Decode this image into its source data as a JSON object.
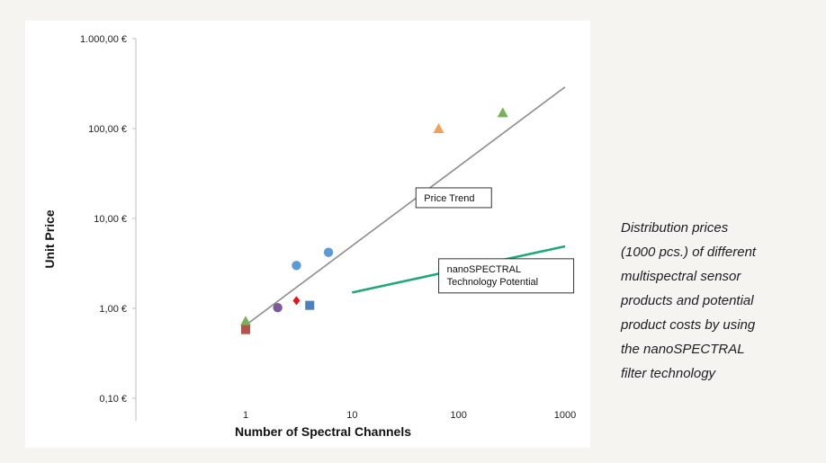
{
  "chart_data": {
    "type": "scatter",
    "xlabel": "Number of Spectral Channels",
    "ylabel": "Unit Price",
    "x_scale": "log",
    "y_scale": "log",
    "xlim": [
      1,
      1000
    ],
    "ylim": [
      0.1,
      1000
    ],
    "x_ticks": [
      1,
      10,
      100,
      1000
    ],
    "x_tick_labels": [
      "1",
      "10",
      "100",
      "1000"
    ],
    "y_ticks": [
      0.1,
      1,
      10,
      100,
      1000
    ],
    "y_tick_labels": [
      "0,10 €",
      "1,00 €",
      "10,00 €",
      "100,00 €",
      "1.000,00 €"
    ],
    "grid": false,
    "legend": "none",
    "points": [
      {
        "x": 1,
        "y": 0.72,
        "marker": "triangle",
        "color": "#77b25a"
      },
      {
        "x": 1,
        "y": 0.58,
        "marker": "square",
        "color": "#b5524c"
      },
      {
        "x": 2,
        "y": 1.02,
        "marker": "circle",
        "color": "#7a5a9c"
      },
      {
        "x": 3,
        "y": 1.22,
        "marker": "diamond",
        "color": "#ee1111"
      },
      {
        "x": 3,
        "y": 3.0,
        "marker": "circle",
        "color": "#5b9bd5"
      },
      {
        "x": 4,
        "y": 1.08,
        "marker": "square",
        "color": "#4a7fc0"
      },
      {
        "x": 6,
        "y": 4.2,
        "marker": "circle",
        "color": "#5b9bd5"
      },
      {
        "x": 65,
        "y": 100,
        "marker": "triangle",
        "color": "#f5a055"
      },
      {
        "x": 260,
        "y": 150,
        "marker": "triangle",
        "color": "#77b25a"
      }
    ],
    "lines": [
      {
        "x": [
          1,
          1000
        ],
        "y": [
          0.65,
          290
        ],
        "color": "#8c8c8c"
      },
      {
        "x": [
          10,
          1000
        ],
        "y": [
          1.5,
          4.9
        ],
        "color": "#1fa67a"
      }
    ],
    "annotations": [
      {
        "lines": [
          "Price Trend"
        ],
        "x": 90,
        "y": 17
      },
      {
        "lines": [
          "nanoSPECTRAL",
          "Technology Potential"
        ],
        "x": 280,
        "y": 2.3
      }
    ]
  },
  "caption": {
    "lines": [
      "Distribution prices",
      "(1000 pcs.) of different",
      "multispectral sensor",
      "products and potential",
      "product costs by using",
      "the nanoSPECTRAL",
      "filter technology"
    ]
  }
}
